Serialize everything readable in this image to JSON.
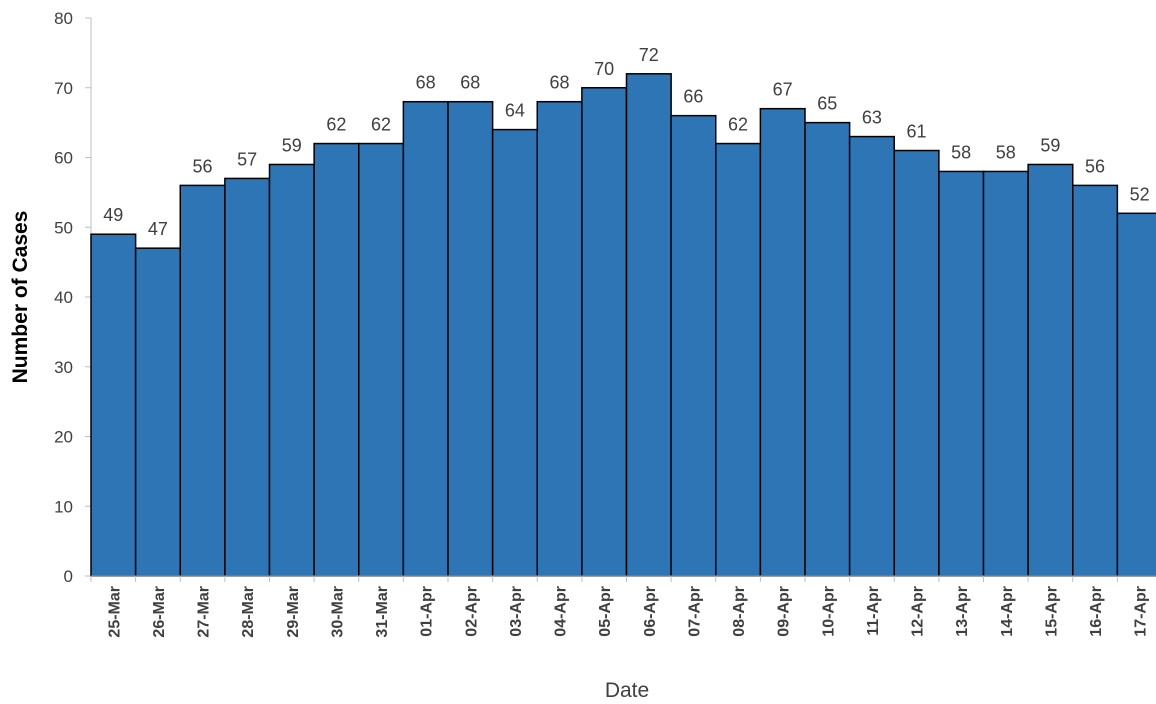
{
  "chart_data": {
    "type": "bar",
    "title": "",
    "xlabel": "Date",
    "ylabel": "Number of Cases",
    "ylim": [
      0,
      80
    ],
    "yticks": [
      0,
      10,
      20,
      30,
      40,
      50,
      60,
      70,
      80
    ],
    "grid": false,
    "legend": "none",
    "bar_color": "#2e75b6",
    "bar_edge_color": "#000000",
    "categories": [
      "25-Mar",
      "26-Mar",
      "27-Mar",
      "28-Mar",
      "29-Mar",
      "30-Mar",
      "31-Mar",
      "01-Apr",
      "02-Apr",
      "03-Apr",
      "04-Apr",
      "05-Apr",
      "06-Apr",
      "07-Apr",
      "08-Apr",
      "09-Apr",
      "10-Apr",
      "11-Apr",
      "12-Apr",
      "13-Apr",
      "14-Apr",
      "15-Apr",
      "16-Apr",
      "17-Apr"
    ],
    "values": [
      49,
      47,
      56,
      57,
      59,
      62,
      62,
      68,
      68,
      64,
      68,
      70,
      72,
      66,
      62,
      67,
      65,
      63,
      61,
      58,
      58,
      59,
      56,
      52
    ]
  }
}
